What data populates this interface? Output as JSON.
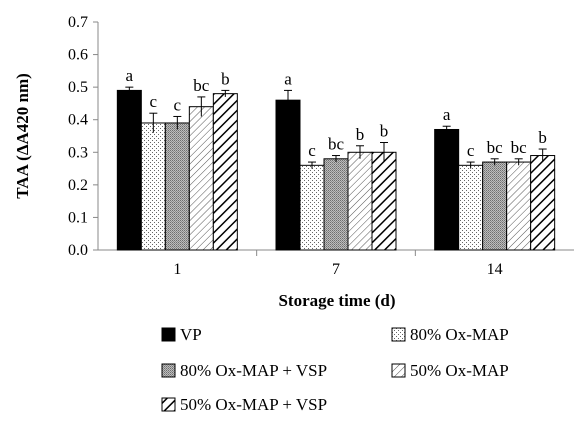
{
  "chart_data": {
    "type": "bar",
    "xlabel": "Storage time (d)",
    "ylabel": "TAA (ΔA420 nm)",
    "ylim": [
      0,
      0.7
    ],
    "yticks": [
      "0.0",
      "0.1",
      "0.2",
      "0.3",
      "0.4",
      "0.5",
      "0.6",
      "0.7"
    ],
    "grid": false,
    "legend_position": "bottom",
    "categories": [
      "1",
      "7",
      "14"
    ],
    "series": [
      {
        "name": "VP",
        "pattern": "solid",
        "values": [
          0.49,
          0.46,
          0.37
        ],
        "errors": [
          0.01,
          0.03,
          0.01
        ],
        "letters": [
          "a",
          "a",
          "a"
        ]
      },
      {
        "name": "80% Ox-MAP",
        "pattern": "dots",
        "values": [
          0.39,
          0.26,
          0.26
        ],
        "errors": [
          0.03,
          0.01,
          0.01
        ],
        "letters": [
          "c",
          "c",
          "c"
        ]
      },
      {
        "name": "80% Ox-MAP + VSP",
        "pattern": "dense",
        "values": [
          0.39,
          0.28,
          0.27
        ],
        "errors": [
          0.02,
          0.01,
          0.01
        ],
        "letters": [
          "c",
          "bc",
          "bc"
        ]
      },
      {
        "name": "50% Ox-MAP",
        "pattern": "thin-diagonal",
        "values": [
          0.44,
          0.3,
          0.27
        ],
        "errors": [
          0.03,
          0.02,
          0.01
        ],
        "letters": [
          "bc",
          "b",
          "bc"
        ]
      },
      {
        "name": "50% Ox-MAP + VSP",
        "pattern": "thick-diagonal",
        "values": [
          0.48,
          0.3,
          0.29
        ],
        "errors": [
          0.01,
          0.03,
          0.02
        ],
        "letters": [
          "b",
          "b",
          "b"
        ]
      }
    ]
  }
}
